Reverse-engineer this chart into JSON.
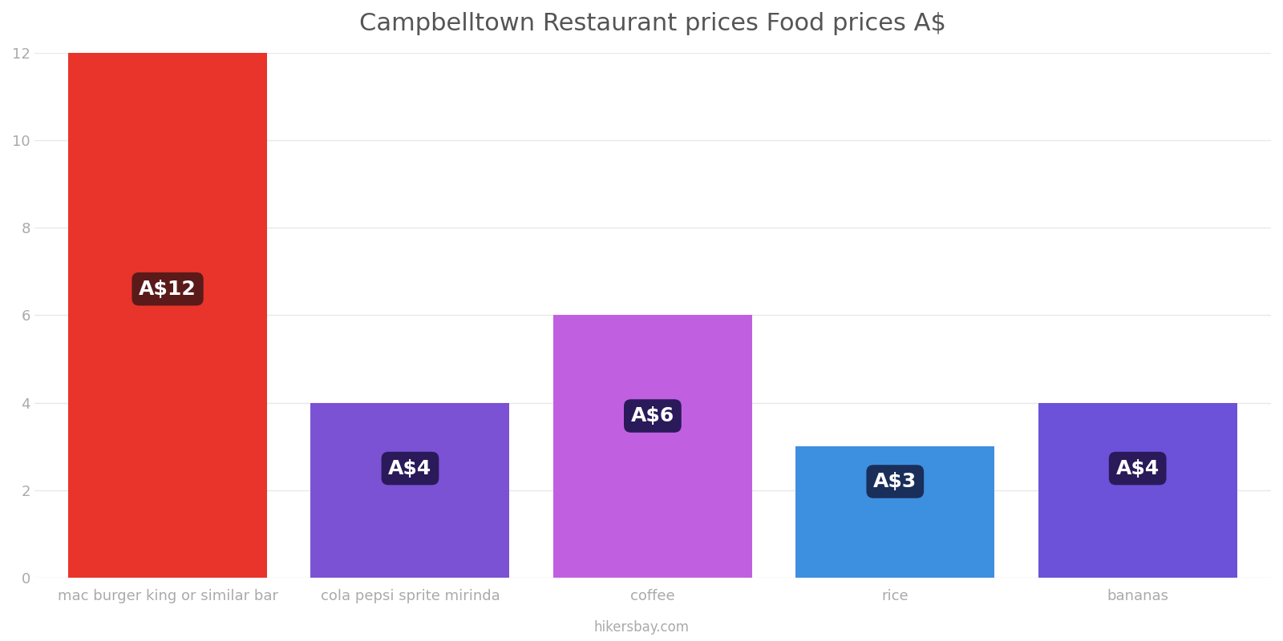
{
  "title": "Campbelltown Restaurant prices Food prices A$",
  "categories": [
    "mac burger king or similar bar",
    "cola pepsi sprite mirinda",
    "coffee",
    "rice",
    "bananas"
  ],
  "values": [
    12,
    4,
    6,
    3,
    4
  ],
  "labels": [
    "A$12",
    "A$4",
    "A$6",
    "A$3",
    "A$4"
  ],
  "bar_colors": [
    "#e8342a",
    "#7b52d3",
    "#c060e0",
    "#3d8fe0",
    "#6b52d8"
  ],
  "label_bg_colors": [
    "#5a1a1a",
    "#2a1a5a",
    "#2a1a5a",
    "#1a2e5a",
    "#2a1a5a"
  ],
  "ylim": [
    0,
    12
  ],
  "yticks": [
    0,
    2,
    4,
    6,
    8,
    10,
    12
  ],
  "title_fontsize": 22,
  "tick_fontsize": 13,
  "label_fontsize": 18,
  "background_color": "#ffffff",
  "grid_color": "#e8e8e8",
  "footer_text": "hikersbay.com",
  "label_y_positions": [
    6.6,
    2.5,
    3.7,
    2.2,
    2.5
  ],
  "bar_width": 0.82
}
